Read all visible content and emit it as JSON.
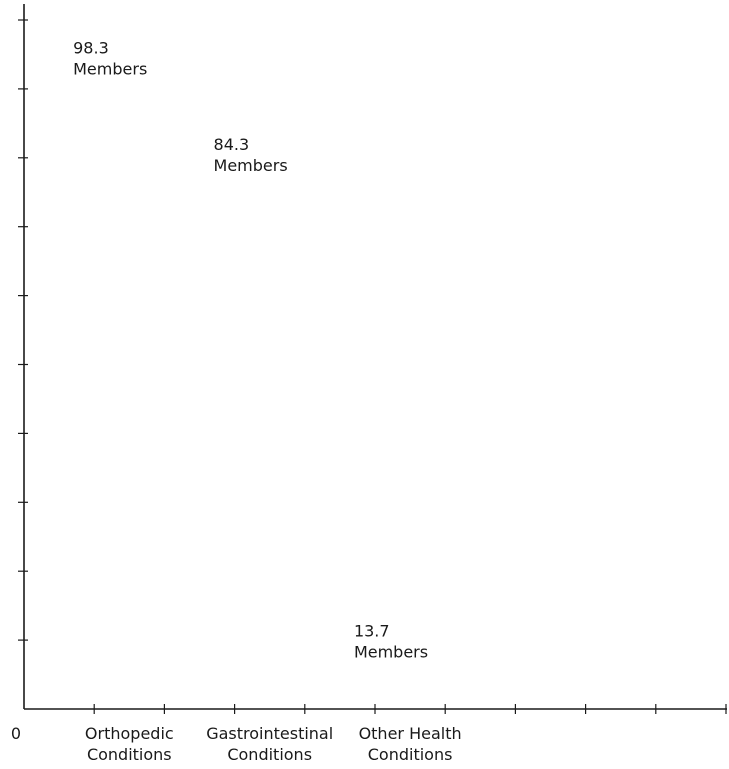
{
  "chart_data": {
    "type": "bar",
    "categories": [
      [
        "Orthopedic",
        "Conditions"
      ],
      [
        "Gastrointestinal",
        "Conditions"
      ],
      [
        "Other Health",
        "Conditions"
      ]
    ],
    "series": [
      {
        "values": [
          98.3,
          84.3,
          13.7
        ],
        "data_labels": [
          "98.3",
          "84.3",
          "13.7"
        ],
        "unit_label": "Members"
      }
    ],
    "origin_label": "0",
    "ylim": [
      0,
      100
    ],
    "y_tick_step": 10,
    "x_tick_count": 10,
    "grid": false,
    "bars_visible": false,
    "colors": {
      "ink": "#1a1a1a",
      "background": "#ffffff"
    }
  }
}
